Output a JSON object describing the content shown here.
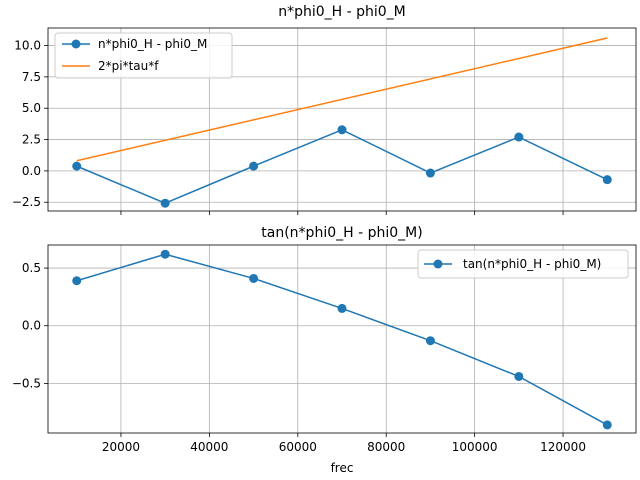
{
  "chart_data": [
    {
      "type": "line",
      "title": "n*phi0_H - phi0_M",
      "xlabel": "",
      "ylabel": "",
      "xlim": [
        3500,
        136500
      ],
      "ylim": [
        -3.2,
        11.4
      ],
      "xticks": [
        20000,
        40000,
        60000,
        80000,
        100000,
        120000
      ],
      "xtick_labels_visible": false,
      "yticks": [
        -2.5,
        0.0,
        2.5,
        5.0,
        7.5,
        10.0
      ],
      "ytick_labels": [
        "−2.5",
        "0.0",
        "2.5",
        "5.0",
        "7.5",
        "10.0"
      ],
      "grid": true,
      "legend": "top-left",
      "series": [
        {
          "name": "n*phi0_H - phi0_M",
          "color": "#1f77b4",
          "marker": "circle",
          "x": [
            10000,
            30000,
            50000,
            70000,
            90000,
            110000,
            130000
          ],
          "y": [
            0.38,
            -2.58,
            0.38,
            3.28,
            -0.17,
            2.7,
            -0.7
          ]
        },
        {
          "name": "2*pi*tau*f",
          "color": "#ff7f0e",
          "marker": "none",
          "x": [
            10000,
            130000
          ],
          "y": [
            0.81,
            10.6
          ]
        }
      ]
    },
    {
      "type": "line",
      "title": "tan(n*phi0_H - phi0_M)",
      "xlabel": "frec",
      "ylabel": "",
      "xlim": [
        3500,
        136500
      ],
      "ylim": [
        -0.93,
        0.7
      ],
      "xticks": [
        20000,
        40000,
        60000,
        80000,
        100000,
        120000
      ],
      "xtick_labels": [
        "20000",
        "40000",
        "60000",
        "80000",
        "100000",
        "120000"
      ],
      "yticks": [
        -0.5,
        0.0,
        0.5
      ],
      "ytick_labels": [
        "−0.5",
        "0.0",
        "0.5"
      ],
      "grid": true,
      "legend": "top-right",
      "series": [
        {
          "name": "tan(n*phi0_H - phi0_M)",
          "color": "#1f77b4",
          "marker": "circle",
          "x": [
            10000,
            30000,
            50000,
            70000,
            90000,
            110000,
            130000
          ],
          "y": [
            0.39,
            0.62,
            0.41,
            0.15,
            -0.13,
            -0.44,
            -0.86
          ]
        }
      ]
    }
  ]
}
